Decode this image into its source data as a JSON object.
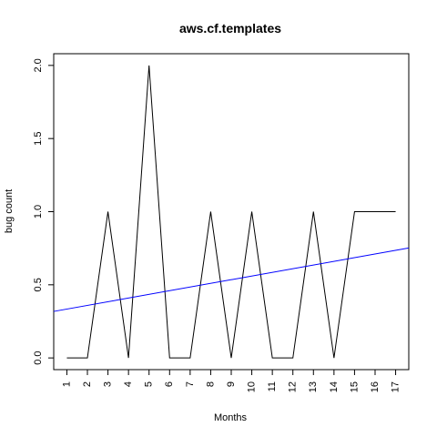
{
  "chart_data": {
    "type": "line",
    "title": "aws.cf.templates",
    "xlabel": "Months",
    "ylabel": "bug count",
    "x": [
      1,
      2,
      3,
      4,
      5,
      6,
      7,
      8,
      9,
      10,
      11,
      12,
      13,
      14,
      15,
      16,
      17
    ],
    "series": [
      {
        "values": [
          0,
          0,
          1,
          0,
          2,
          0,
          0,
          1,
          0,
          1,
          0,
          0,
          1,
          0,
          1,
          1,
          1
        ],
        "color": "#000000"
      }
    ],
    "trend_line": {
      "color": "#0000ff",
      "intercept": 0.309,
      "slope": 0.0251
    },
    "xticks": [
      "1",
      "2",
      "3",
      "4",
      "5",
      "6",
      "7",
      "8",
      "9",
      "10",
      "11",
      "12",
      "13",
      "14",
      "15",
      "16",
      "17"
    ],
    "yticks": [
      "0.0",
      "0.5",
      "1.0",
      "1.5",
      "2.0"
    ],
    "xlim": [
      0.36,
      17.64
    ],
    "ylim": [
      -0.08,
      2.08
    ],
    "grid": false,
    "legend": "none"
  }
}
